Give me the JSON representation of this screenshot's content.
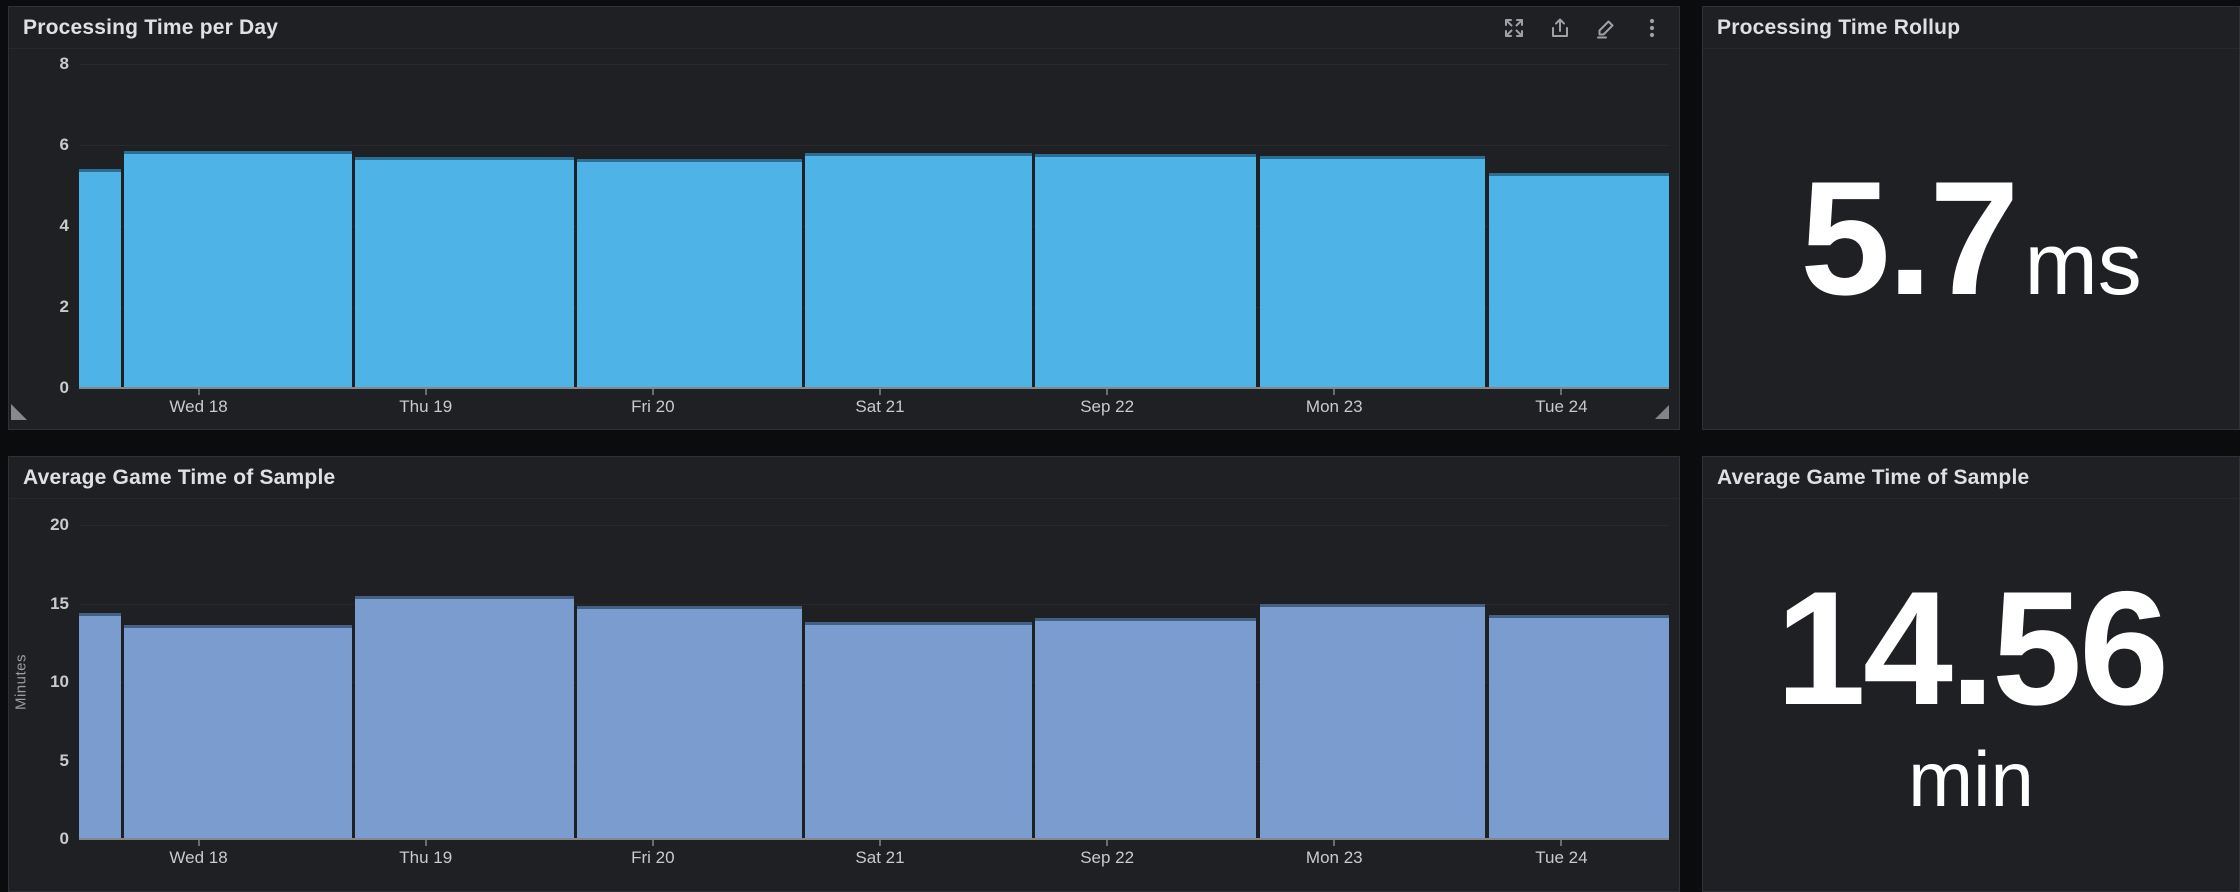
{
  "colors": {
    "page_background": "#0b0c0e",
    "panel_background": "#1e2024",
    "panel_border": "#2f3136",
    "processing_bar": "#4eb4e7",
    "gametime_bar": "#7b9cce",
    "stat_text": "#ffffff",
    "axis_text": "#c9cacc"
  },
  "panels": {
    "processing_chart": {
      "title": "Processing Time per Day",
      "toolbar": [
        "maximize-icon",
        "share-icon",
        "edit-icon",
        "kebab-menu-icon"
      ]
    },
    "processing_stat": {
      "title": "Processing Time Rollup",
      "value": "5.7",
      "unit": "ms"
    },
    "gametime_chart": {
      "title": "Average Game Time of Sample"
    },
    "gametime_stat": {
      "title": "Average Game Time of Sample",
      "value": "14.56",
      "unit": "min"
    }
  },
  "chart_data": [
    {
      "id": "processing-time-per-day",
      "type": "bar",
      "title": "Processing Time per Day",
      "xlabel": "",
      "ylabel": "",
      "ylim": [
        0,
        8
      ],
      "yticks": [
        0,
        2,
        4,
        6,
        8
      ],
      "grid": true,
      "legend": false,
      "bar_color": "#4eb4e7",
      "categories": [
        "Wed 18",
        "Thu 19",
        "Fri 20",
        "Sat 21",
        "Sep 22",
        "Mon 23",
        "Tue 24"
      ],
      "bars": [
        {
          "x0": 0.0,
          "x1": 0.0265,
          "value": 5.4,
          "note": "partial bar at left edge"
        },
        {
          "x0": 0.0285,
          "x1": 0.1715,
          "value": 5.85
        },
        {
          "x0": 0.1735,
          "x1": 0.3115,
          "value": 5.7
        },
        {
          "x0": 0.3135,
          "x1": 0.4545,
          "value": 5.65
        },
        {
          "x0": 0.4565,
          "x1": 0.5995,
          "value": 5.8
        },
        {
          "x0": 0.6015,
          "x1": 0.7405,
          "value": 5.77
        },
        {
          "x0": 0.7425,
          "x1": 0.8845,
          "value": 5.74
        },
        {
          "x0": 0.8865,
          "x1": 1.0,
          "value": 5.3,
          "note": "clipped at right edge"
        }
      ]
    },
    {
      "id": "average-game-time-of-sample",
      "type": "bar",
      "title": "Average Game Time of Sample",
      "xlabel": "",
      "ylabel": "Minutes",
      "ylim": [
        0,
        20
      ],
      "yticks": [
        0,
        5,
        10,
        15,
        20
      ],
      "grid": true,
      "legend": false,
      "bar_color": "#7b9cce",
      "categories": [
        "Wed 18",
        "Thu 19",
        "Fri 20",
        "Sat 21",
        "Sep 22",
        "Mon 23",
        "Tue 24"
      ],
      "bars": [
        {
          "x0": 0.0,
          "x1": 0.0265,
          "value": 14.4,
          "note": "partial bar at left edge"
        },
        {
          "x0": 0.0285,
          "x1": 0.1715,
          "value": 13.6
        },
        {
          "x0": 0.1735,
          "x1": 0.3115,
          "value": 15.5
        },
        {
          "x0": 0.3135,
          "x1": 0.4545,
          "value": 14.85
        },
        {
          "x0": 0.4565,
          "x1": 0.5995,
          "value": 13.8
        },
        {
          "x0": 0.6015,
          "x1": 0.7405,
          "value": 14.1
        },
        {
          "x0": 0.7425,
          "x1": 0.8845,
          "value": 15.0
        },
        {
          "x0": 0.8865,
          "x1": 1.0,
          "value": 14.3,
          "note": "clipped at right edge"
        }
      ]
    }
  ]
}
